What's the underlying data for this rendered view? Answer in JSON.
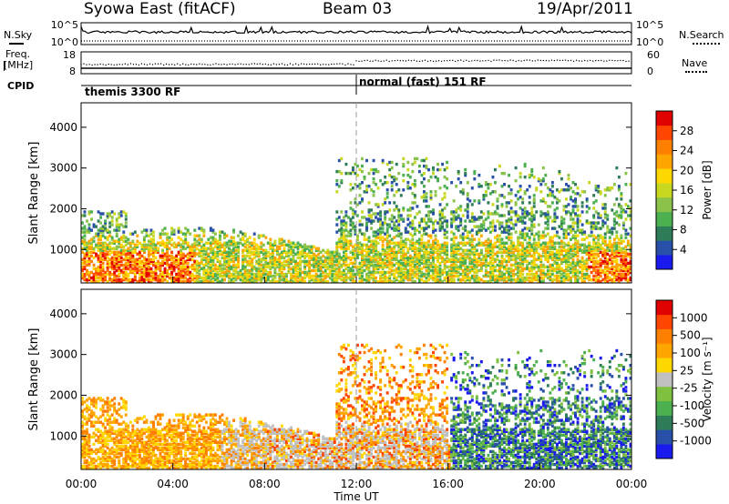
{
  "header": {
    "station": "Syowa East (fitACF)",
    "beam": "Beam 03",
    "date": "19/Apr/2011"
  },
  "noise_panel": {
    "left_label": "N.Sky",
    "right_label": "N.Search",
    "left_ticks": [
      "10^5",
      "10^0"
    ],
    "right_ticks": [
      "10^5",
      "10^0"
    ]
  },
  "freq_panel": {
    "left_label_line1": "Freq.",
    "left_label_line2": "[MHz]",
    "right_label": "Nave",
    "left_ticks": [
      "18",
      "8"
    ],
    "right_ticks": [
      "60",
      "0"
    ]
  },
  "cpid": {
    "label": "CPID",
    "modes": [
      {
        "start_hour": 0,
        "text": "themis 3300 RF"
      },
      {
        "start_hour": 12,
        "text": "normal (fast) 151 RF"
      }
    ]
  },
  "chart_data": [
    {
      "type": "heatmap",
      "name": "power",
      "ylabel": "Slant Range [km]",
      "yticks": [
        1000,
        2000,
        3000,
        4000
      ],
      "ylim": [
        180,
        4600
      ],
      "xlim_hours": [
        0,
        24
      ],
      "colorbar": {
        "label": "Power [dB]",
        "ticks": [
          "28",
          "24",
          "20",
          "16",
          "12",
          "8",
          "4"
        ],
        "colors": [
          "#1a1aee",
          "#2850a8",
          "#2e7d58",
          "#4caf50",
          "#8bc34a",
          "#c8d820",
          "#ffd700",
          "#ffa500",
          "#ff7f00",
          "#ff4500",
          "#e00000"
        ]
      }
    },
    {
      "type": "heatmap",
      "name": "velocity",
      "ylabel": "Slant Range [km]",
      "yticks": [
        1000,
        2000,
        3000,
        4000
      ],
      "ylim": [
        180,
        4600
      ],
      "xlim_hours": [
        0,
        24
      ],
      "xlabel": "Time UT",
      "xticks": [
        "00:00",
        "04:00",
        "08:00",
        "12:00",
        "16:00",
        "20:00",
        "00:00"
      ],
      "colorbar": {
        "label": "Velocity [m s⁻¹]",
        "ticks": [
          "1000",
          "500",
          "100",
          "25",
          "-25",
          "-100",
          "-500",
          "-1000"
        ],
        "colors": [
          "#1a1aee",
          "#2850a8",
          "#2e7d58",
          "#4caf50",
          "#80c040",
          "#c0c0c0",
          "#ffd700",
          "#ffa500",
          "#ff7f00",
          "#ff4500",
          "#e00000"
        ]
      }
    }
  ]
}
